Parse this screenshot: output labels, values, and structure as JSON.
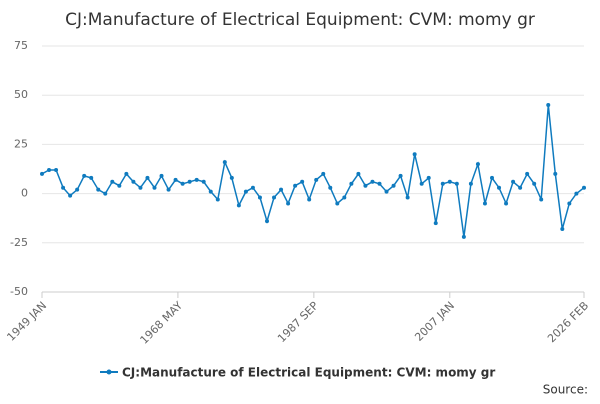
{
  "chart_data": {
    "type": "line",
    "title": "CJ:Manufacture of Electrical Equipment: CVM: momy gr",
    "source": "Source:",
    "x": [
      "1949 JAN",
      "1950 JAN",
      "1951 JAN",
      "1952 JAN",
      "1953 JAN",
      "1954 JAN",
      "1955 JAN",
      "1956 JAN",
      "1957 JAN",
      "1958 JAN",
      "1959 JAN",
      "1960 JAN",
      "1961 JAN",
      "1962 JAN",
      "1963 JAN",
      "1964 JAN",
      "1965 JAN",
      "1966 JAN",
      "1967 JAN",
      "1968 JAN",
      "1969 JAN",
      "1970 JAN",
      "1971 JAN",
      "1972 JAN",
      "1973 JAN",
      "1974 JAN",
      "1975 JAN",
      "1976 JAN",
      "1977 JAN",
      "1978 JAN",
      "1979 JAN",
      "1980 JAN",
      "1981 JAN",
      "1982 JAN",
      "1983 JAN",
      "1984 JAN",
      "1985 JAN",
      "1986 JAN",
      "1987 JAN",
      "1988 JAN",
      "1989 JAN",
      "1990 JAN",
      "1991 JAN",
      "1992 JAN",
      "1993 JAN",
      "1994 JAN",
      "1995 JAN",
      "1996 JAN",
      "1997 JAN",
      "1998 JAN",
      "1999 JAN",
      "2000 JAN",
      "2001 JAN",
      "2002 JAN",
      "2003 JAN",
      "2004 JAN",
      "2005 JAN",
      "2006 JAN",
      "2007 JAN",
      "2008 JAN",
      "2009 JAN",
      "2010 JAN",
      "2011 JAN",
      "2012 JAN",
      "2013 JAN",
      "2014 JAN",
      "2015 JAN",
      "2016 JAN",
      "2017 JAN",
      "2018 JAN",
      "2019 JAN",
      "2020 JAN",
      "2021 JAN",
      "2022 JAN",
      "2023 JAN",
      "2024 JAN",
      "2025 JAN",
      "2026 FEB"
    ],
    "series": [
      {
        "name": "CJ:Manufacture of Electrical Equipment: CVM: momy gr",
        "color": "#0f7bbf",
        "values": [
          10,
          12,
          12,
          3,
          -1,
          2,
          9,
          8,
          2,
          0,
          6,
          4,
          10,
          6,
          3,
          8,
          3,
          9,
          2,
          7,
          5,
          6,
          7,
          6,
          1,
          -3,
          16,
          8,
          -6,
          1,
          3,
          -2,
          -14,
          -2,
          2,
          -5,
          4,
          6,
          -3,
          7,
          10,
          3,
          -5,
          -2,
          5,
          10,
          4,
          6,
          5,
          1,
          4,
          9,
          -2,
          20,
          5,
          8,
          -15,
          5,
          6,
          5,
          -22,
          5,
          15,
          -5,
          8,
          3,
          -5,
          6,
          3,
          10,
          5,
          -3,
          45,
          10,
          -18,
          -5,
          0,
          3
        ]
      }
    ],
    "xlim": [
      "1949 JAN",
      "2026 FEB"
    ],
    "xticks": [
      "1949 JAN",
      "1968 MAY",
      "1987 SEP",
      "2007 JAN",
      "2026 FEB"
    ],
    "ylim": [
      -50,
      75
    ],
    "yticks": [
      -50,
      -25,
      0,
      25,
      50,
      75
    ],
    "grid": true
  }
}
